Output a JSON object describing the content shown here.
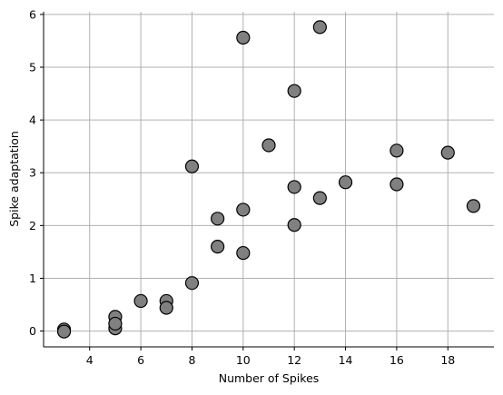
{
  "chart_data": {
    "type": "scatter",
    "x_label": "Number of Spikes",
    "y_label": "Spike adaptation",
    "x": [
      3,
      3,
      5,
      5,
      5,
      6,
      7,
      7,
      8,
      8,
      9,
      9,
      10,
      10,
      10,
      11,
      12,
      12,
      12,
      13,
      13,
      14,
      16,
      16,
      18,
      19
    ],
    "values": [
      0.03,
      -0.01,
      0.27,
      0.05,
      0.14,
      0.57,
      0.57,
      0.44,
      0.91,
      3.12,
      2.13,
      1.6,
      5.56,
      2.3,
      1.48,
      3.52,
      4.55,
      2.73,
      2.01,
      5.76,
      2.52,
      2.82,
      3.42,
      2.78,
      3.38,
      2.37
    ],
    "color": "#808080",
    "xlim": [
      2.2,
      19.8
    ],
    "ylim": [
      -0.3,
      6.05
    ],
    "xticks": [
      4,
      6,
      8,
      10,
      12,
      14,
      16,
      18
    ],
    "yticks": [
      0,
      1,
      2,
      3,
      4,
      5,
      6
    ],
    "grid": true
  }
}
